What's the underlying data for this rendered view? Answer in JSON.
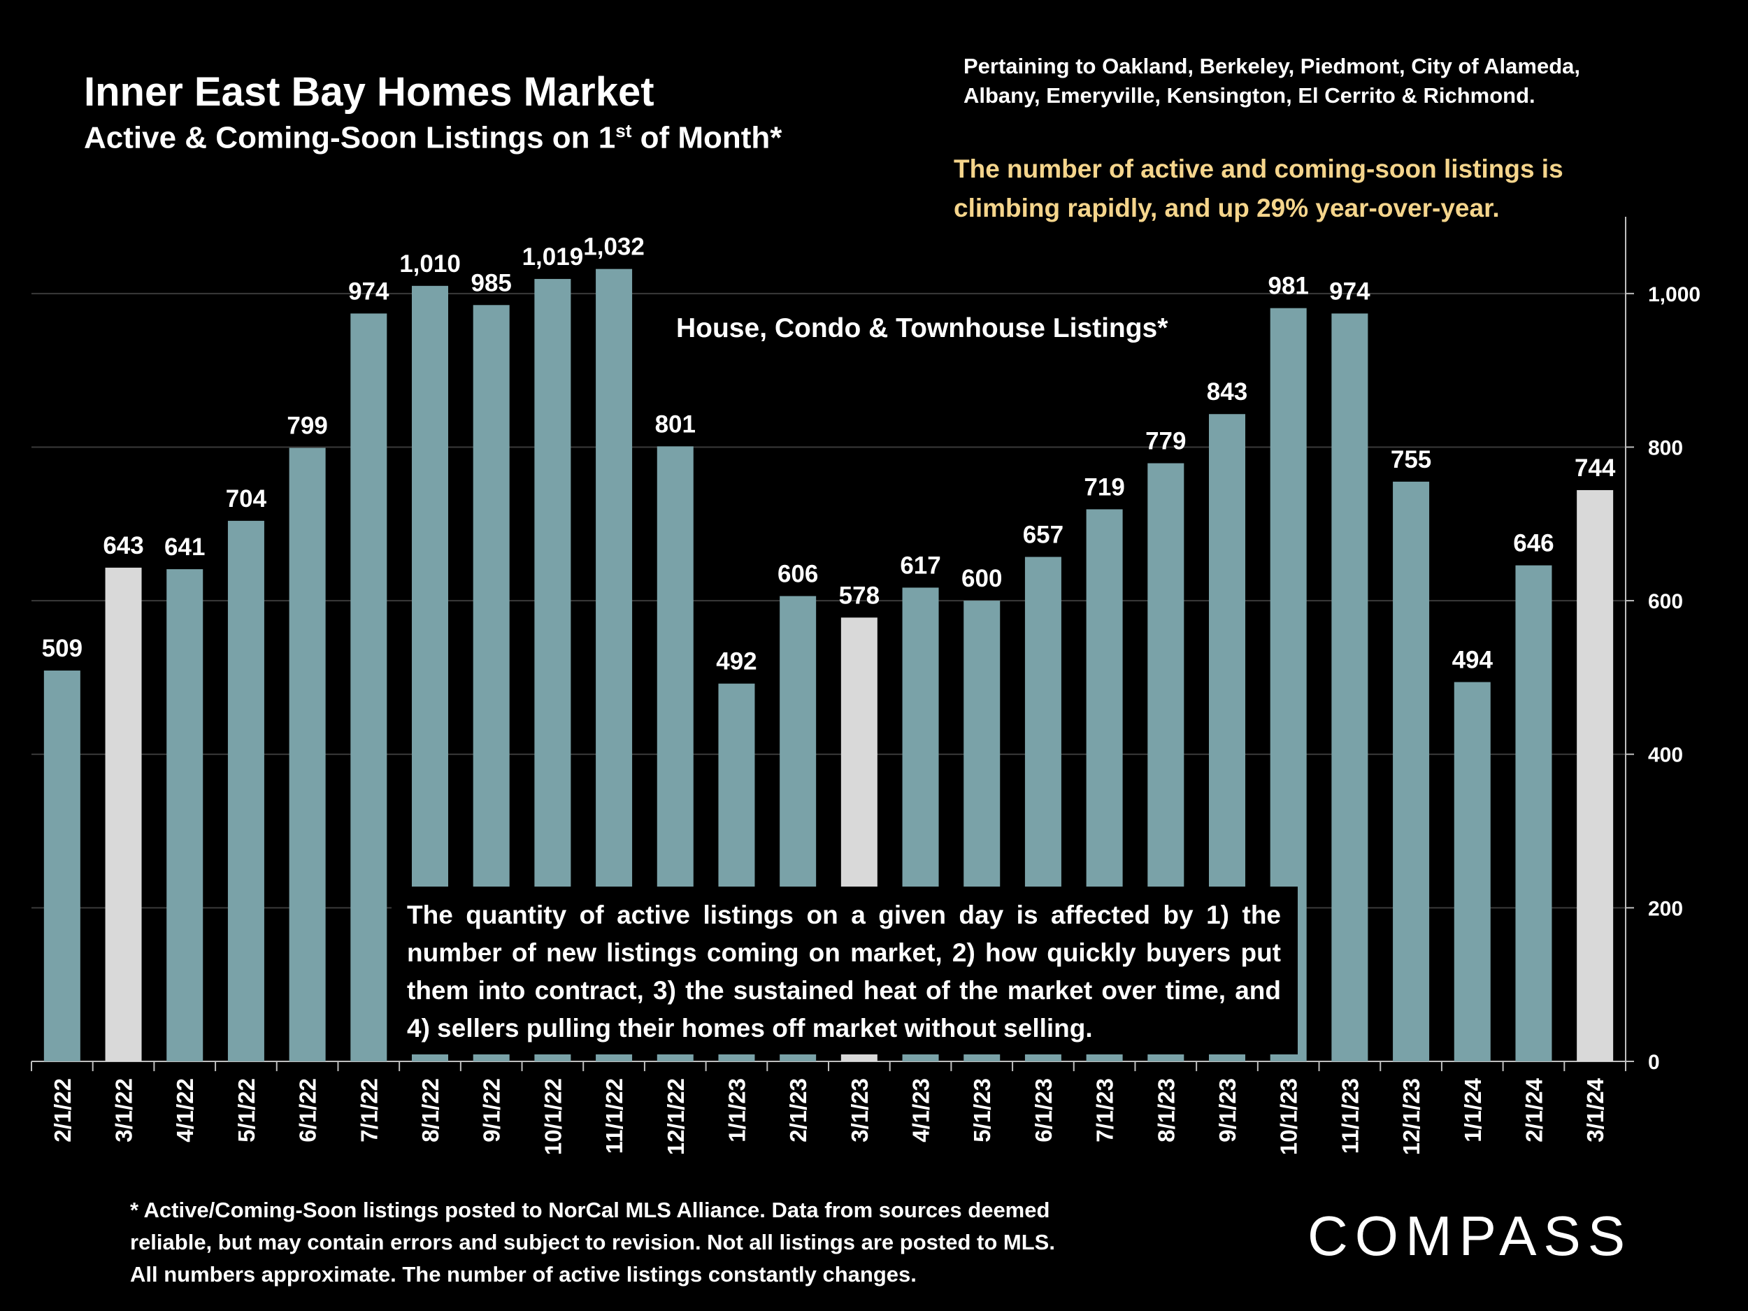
{
  "header": {
    "title": "Inner East Bay Homes Market",
    "subtitle_pre": "Active & Coming-Soon Listings on 1",
    "subtitle_sup": "st",
    "subtitle_post": " of Month*",
    "coverage_line1": "Pertaining to Oakland, Berkeley, Piedmont, City of Alameda,",
    "coverage_line2": "Albany, Emeryville, Kensington, El Cerrito & Richmond.",
    "highlight_line1": "The number of active and coming-soon listings is",
    "highlight_line2": "climbing rapidly, and up 29% year-over-year."
  },
  "inner_label": "House, Condo & Townhouse Listings*",
  "note": "The quantity of active listings on a given day is affected by 1) the number of new listings coming on market, 2) how quickly buyers put them into contract, 3) the sustained heat of the market over time, and 4) sellers pulling their homes off market without selling.",
  "footnote_lines": [
    "* Active/Coming-Soon listings posted to NorCal MLS Alliance.  Data from sources deemed",
    "reliable, but may contain errors and subject to revision.  Not all listings are posted to MLS.",
    "All numbers approximate. The number of active listings constantly changes."
  ],
  "logo": "COMPASS",
  "chart_data": {
    "type": "bar",
    "title": "Inner East Bay Homes Market",
    "categories": [
      "2/1/22",
      "3/1/22",
      "4/1/22",
      "5/1/22",
      "6/1/22",
      "7/1/22",
      "8/1/22",
      "9/1/22",
      "10/1/22",
      "11/1/22",
      "12/1/22",
      "1/1/23",
      "2/1/23",
      "3/1/23",
      "4/1/23",
      "5/1/23",
      "6/1/23",
      "7/1/23",
      "8/1/23",
      "9/1/23",
      "10/1/23",
      "11/1/23",
      "12/1/23",
      "1/1/24",
      "2/1/24",
      "3/1/24"
    ],
    "values": [
      509,
      643,
      641,
      704,
      799,
      974,
      1010,
      985,
      1019,
      1032,
      801,
      492,
      606,
      578,
      617,
      600,
      657,
      719,
      779,
      843,
      981,
      974,
      755,
      494,
      646,
      744
    ],
    "labels": [
      "509",
      "643",
      "641",
      "704",
      "799",
      "974",
      "1,010",
      "985",
      "1,019",
      "1,032",
      "801",
      "492",
      "606",
      "578",
      "617",
      "600",
      "657",
      "719",
      "779",
      "843",
      "981",
      "974",
      "755",
      "494",
      "646",
      "744"
    ],
    "highlighted": [
      false,
      true,
      false,
      false,
      false,
      false,
      false,
      false,
      false,
      false,
      false,
      false,
      false,
      true,
      false,
      false,
      false,
      false,
      false,
      false,
      false,
      false,
      false,
      false,
      false,
      true
    ],
    "ylim": [
      0,
      1100
    ],
    "yticks": [
      0,
      200,
      400,
      600,
      800,
      1000
    ],
    "ytick_labels": [
      "0",
      "200",
      "400",
      "600",
      "800",
      "1,000"
    ],
    "y_axis_side": "right",
    "grid": true,
    "colors": {
      "bar": "#7aa2a8",
      "highlight": "#d9d9d9",
      "grid": "#3a3a3a",
      "axis": "#bfbfbf"
    }
  }
}
